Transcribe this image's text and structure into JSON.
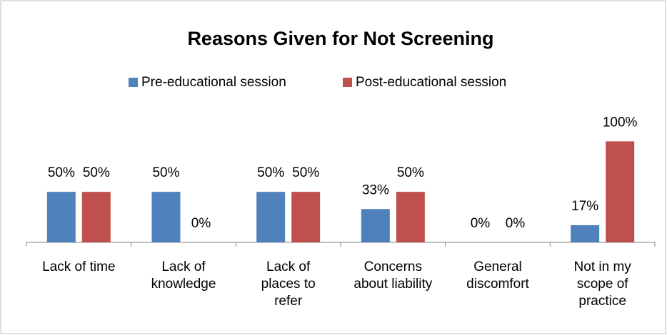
{
  "chart_data": {
    "type": "bar",
    "title": "Reasons Given for Not Screening",
    "categories": [
      "Lack of time",
      "Lack of knowledge",
      "Lack of places to refer",
      "Concerns about liability",
      "General discomfort",
      "Not in my scope of practice"
    ],
    "series": [
      {
        "name": "Pre-educational session",
        "color": "#4f81bd",
        "values": [
          50,
          50,
          50,
          33,
          0,
          17
        ],
        "value_labels": [
          "50%",
          "50%",
          "50%",
          "33%",
          "0%",
          "17%"
        ]
      },
      {
        "name": "Post-educational session",
        "color": "#c0504d",
        "values": [
          50,
          0,
          50,
          50,
          0,
          100
        ],
        "value_labels": [
          "50%",
          "0%",
          "50%",
          "50%",
          "0%",
          "100%"
        ]
      }
    ],
    "ylim": [
      0,
      120
    ],
    "legend": "top"
  }
}
